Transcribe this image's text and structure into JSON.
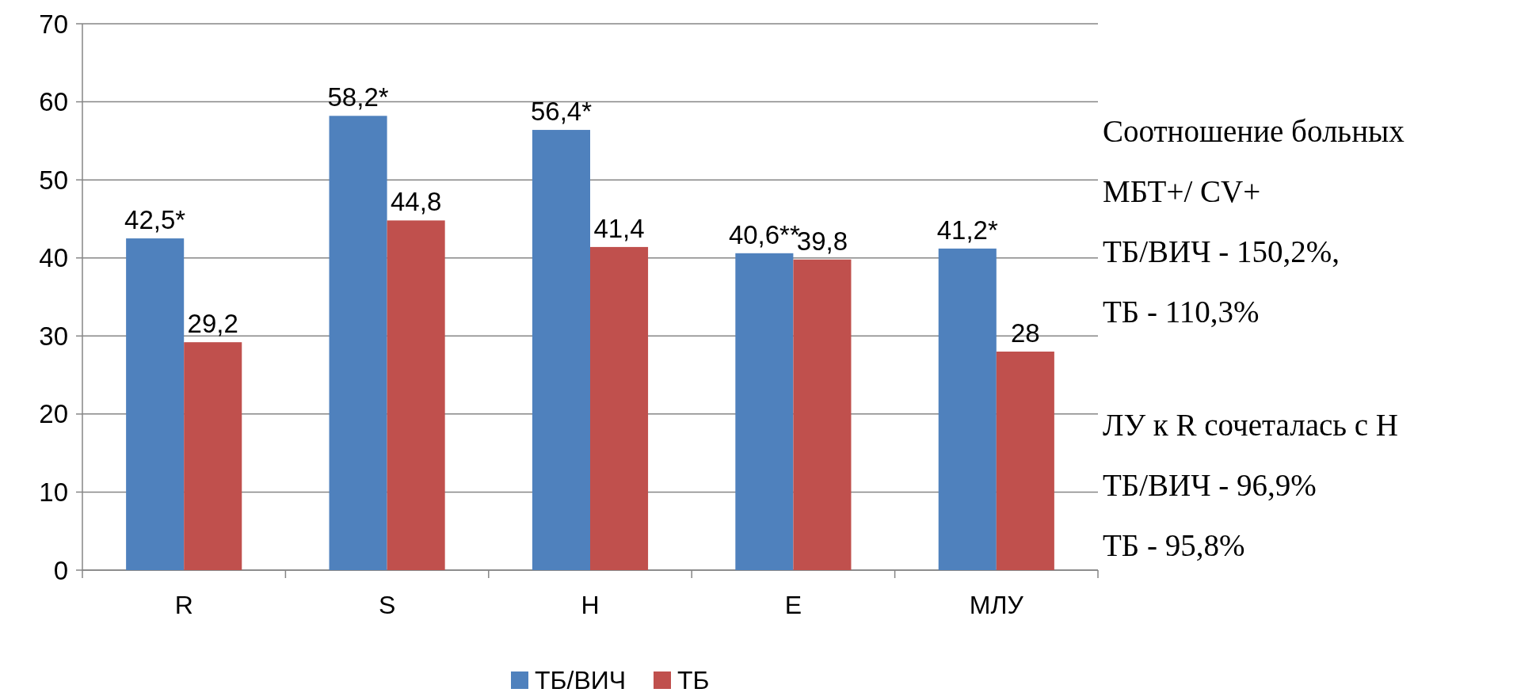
{
  "chart_data": {
    "type": "bar",
    "categories": [
      "R",
      "S",
      "Н",
      "Е",
      "МЛУ"
    ],
    "series": [
      {
        "name": "ТБ/ВИЧ",
        "color": "#4f81bd",
        "values": [
          42.5,
          58.2,
          56.4,
          40.6,
          41.2
        ],
        "value_labels": [
          "42,5*",
          "58,2*",
          "56,4*",
          "40,6**",
          "41,2*"
        ]
      },
      {
        "name": "ТБ",
        "color": "#c0504d",
        "values": [
          29.2,
          44.8,
          41.4,
          39.8,
          28
        ],
        "value_labels": [
          "29,2",
          "44,8",
          "41,4",
          "39,8",
          "28"
        ]
      }
    ],
    "ylim": [
      0,
      70
    ],
    "yticks": [
      0,
      10,
      20,
      30,
      40,
      50,
      60,
      70
    ],
    "grid": "y",
    "legend": "bottom",
    "annotations": [
      "Соотношение больных\nМБТ+/ CV+\nТБ/ВИЧ -  150,2%,\nТБ - 110,3%",
      "ЛУ к R сочеталась с Н\nТБ/ВИЧ - 96,9%\nТБ - 95,8%"
    ]
  }
}
